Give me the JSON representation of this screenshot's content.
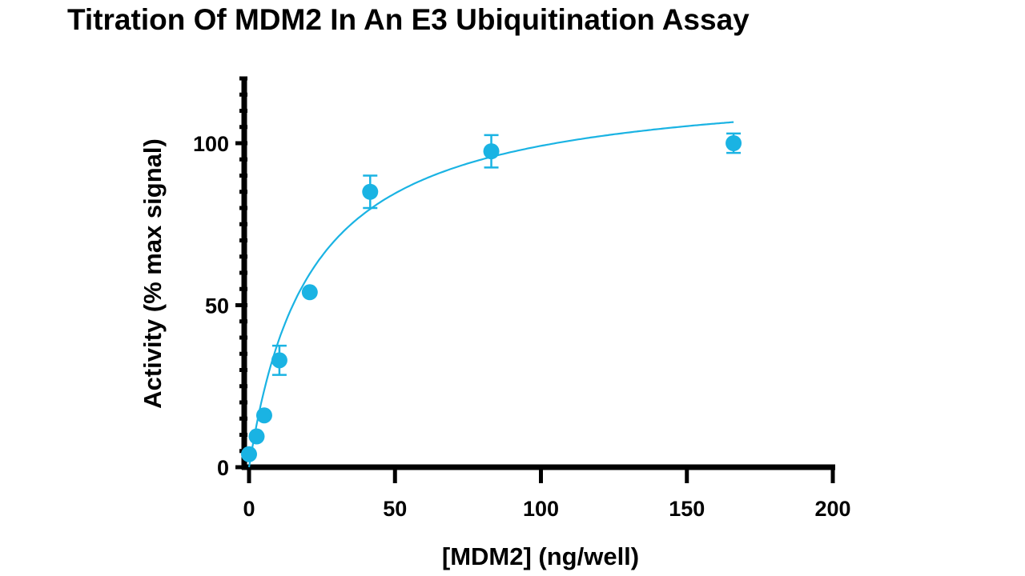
{
  "chart_data": {
    "type": "scatter",
    "title": "Titration Of MDM2 In An E3 Ubiquitination Assay",
    "xlabel": "[MDM2] (ng/well)",
    "ylabel": "Activity (% max signal)",
    "xlim": [
      0,
      200
    ],
    "ylim": [
      0,
      120
    ],
    "x_ticks": [
      0,
      50,
      100,
      150,
      200
    ],
    "y_ticks": [
      0,
      50,
      100
    ],
    "grid": false,
    "legend": "none",
    "color": "#1ab3e3",
    "series": [
      {
        "x": [
          0,
          2.6,
          5.2,
          10.4,
          20.8,
          41.5,
          83,
          166
        ],
        "y": [
          4,
          9.5,
          16,
          33,
          54,
          85,
          97.5,
          100
        ],
        "error": [
          0,
          0,
          0,
          4.5,
          0,
          5,
          5,
          3
        ]
      }
    ],
    "fit": {
      "type": "hyperbolic",
      "ymax": 120,
      "k": 21,
      "x_range": [
        0,
        166
      ]
    }
  }
}
